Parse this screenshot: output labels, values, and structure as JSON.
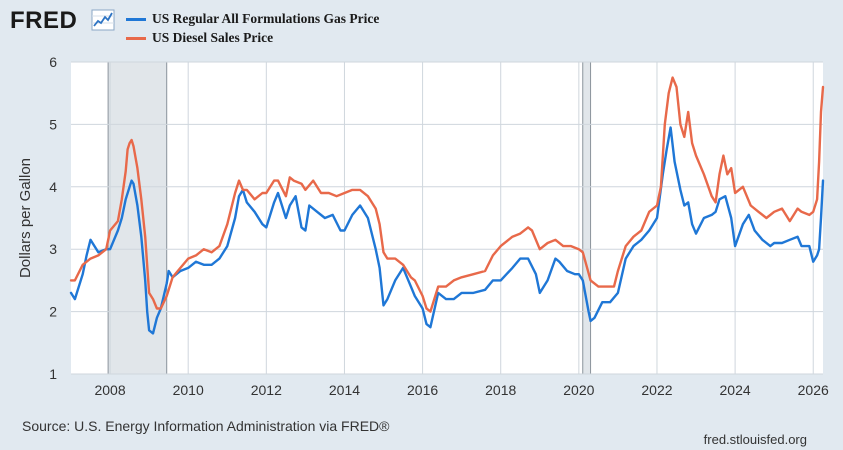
{
  "header": {
    "logo_text": "FRED",
    "logo_icon": "trend-chart-icon"
  },
  "legend": [
    {
      "label": "US Regular All Formulations Gas Price",
      "color": "#1f77d6"
    },
    {
      "label": "US Diesel Sales Price",
      "color": "#e8694a"
    }
  ],
  "footer": {
    "source": "Source: U.S. Energy Information Administration via FRED®",
    "site": "fred.stlouisfed.org"
  },
  "chart_data": {
    "type": "line",
    "title": "",
    "xlabel": "",
    "ylabel": "Dollars per Gallon",
    "xlim": [
      2007.0,
      2026.25
    ],
    "ylim": [
      1,
      6
    ],
    "yticks": [
      1,
      2,
      3,
      4,
      5,
      6
    ],
    "xticks": [
      2008,
      2010,
      2012,
      2014,
      2016,
      2018,
      2020,
      2022,
      2024,
      2026
    ],
    "grid": true,
    "recessions": [
      [
        2007.95,
        2009.45
      ],
      [
        2020.1,
        2020.3
      ]
    ],
    "series": [
      {
        "name": "US Regular All Formulations Gas Price",
        "color": "#1f77d6",
        "x": [
          2007.0,
          2007.1,
          2007.3,
          2007.4,
          2007.5,
          2007.7,
          2007.9,
          2008.0,
          2008.2,
          2008.3,
          2008.4,
          2008.5,
          2008.55,
          2008.6,
          2008.7,
          2008.8,
          2008.9,
          2008.95,
          2009.0,
          2009.1,
          2009.2,
          2009.3,
          2009.45,
          2009.5,
          2009.6,
          2009.8,
          2010.0,
          2010.2,
          2010.4,
          2010.6,
          2010.8,
          2011.0,
          2011.2,
          2011.3,
          2011.4,
          2011.5,
          2011.7,
          2011.9,
          2012.0,
          2012.2,
          2012.3,
          2012.5,
          2012.6,
          2012.75,
          2012.9,
          2013.0,
          2013.1,
          2013.3,
          2013.5,
          2013.7,
          2013.9,
          2014.0,
          2014.2,
          2014.4,
          2014.6,
          2014.8,
          2014.9,
          2015.0,
          2015.1,
          2015.3,
          2015.5,
          2015.7,
          2015.8,
          2016.0,
          2016.1,
          2016.2,
          2016.4,
          2016.6,
          2016.8,
          2017.0,
          2017.3,
          2017.6,
          2017.8,
          2018.0,
          2018.3,
          2018.5,
          2018.7,
          2018.9,
          2019.0,
          2019.2,
          2019.4,
          2019.5,
          2019.7,
          2019.9,
          2020.0,
          2020.1,
          2020.25,
          2020.3,
          2020.4,
          2020.6,
          2020.8,
          2021.0,
          2021.2,
          2021.4,
          2021.6,
          2021.8,
          2022.0,
          2022.15,
          2022.25,
          2022.35,
          2022.45,
          2022.6,
          2022.7,
          2022.8,
          2022.9,
          2023.0,
          2023.2,
          2023.4,
          2023.5,
          2023.6,
          2023.75,
          2023.9,
          2024.0,
          2024.2,
          2024.35,
          2024.5,
          2024.7,
          2024.9,
          2025.0,
          2025.2,
          2025.4,
          2025.6,
          2025.7,
          2025.9,
          2026.0,
          2026.1,
          2026.15,
          2026.2,
          2026.25
        ],
        "values": [
          2.3,
          2.2,
          2.6,
          2.9,
          3.15,
          2.95,
          3.0,
          3.0,
          3.3,
          3.5,
          3.8,
          4.0,
          4.1,
          4.05,
          3.7,
          3.2,
          2.5,
          2.0,
          1.7,
          1.65,
          1.9,
          2.05,
          2.45,
          2.65,
          2.55,
          2.65,
          2.7,
          2.8,
          2.75,
          2.75,
          2.85,
          3.05,
          3.5,
          3.85,
          3.95,
          3.75,
          3.6,
          3.4,
          3.35,
          3.75,
          3.9,
          3.5,
          3.7,
          3.85,
          3.35,
          3.3,
          3.7,
          3.6,
          3.5,
          3.55,
          3.3,
          3.3,
          3.55,
          3.7,
          3.5,
          3.0,
          2.7,
          2.1,
          2.2,
          2.5,
          2.7,
          2.4,
          2.25,
          2.05,
          1.8,
          1.75,
          2.3,
          2.2,
          2.2,
          2.3,
          2.3,
          2.35,
          2.5,
          2.5,
          2.7,
          2.85,
          2.85,
          2.6,
          2.3,
          2.5,
          2.85,
          2.8,
          2.65,
          2.6,
          2.6,
          2.5,
          2.0,
          1.85,
          1.9,
          2.15,
          2.15,
          2.3,
          2.85,
          3.05,
          3.15,
          3.3,
          3.5,
          4.2,
          4.6,
          4.95,
          4.4,
          3.95,
          3.7,
          3.75,
          3.4,
          3.25,
          3.5,
          3.55,
          3.6,
          3.8,
          3.85,
          3.5,
          3.05,
          3.4,
          3.55,
          3.3,
          3.15,
          3.05,
          3.1,
          3.1,
          3.15,
          3.2,
          3.05,
          3.05,
          2.8,
          2.9,
          3.0,
          3.5,
          4.1
        ]
      },
      {
        "name": "US Diesel Sales Price",
        "color": "#e8694a",
        "x": [
          2007.0,
          2007.1,
          2007.3,
          2007.5,
          2007.7,
          2007.9,
          2008.0,
          2008.2,
          2008.3,
          2008.4,
          2008.45,
          2008.5,
          2008.55,
          2008.6,
          2008.7,
          2008.8,
          2008.9,
          2009.0,
          2009.1,
          2009.2,
          2009.3,
          2009.45,
          2009.6,
          2009.8,
          2010.0,
          2010.2,
          2010.4,
          2010.6,
          2010.8,
          2011.0,
          2011.2,
          2011.3,
          2011.4,
          2011.5,
          2011.7,
          2011.9,
          2012.0,
          2012.2,
          2012.3,
          2012.5,
          2012.6,
          2012.7,
          2012.9,
          2013.0,
          2013.2,
          2013.4,
          2013.6,
          2013.8,
          2014.0,
          2014.2,
          2014.4,
          2014.6,
          2014.8,
          2014.9,
          2015.0,
          2015.1,
          2015.3,
          2015.5,
          2015.7,
          2015.8,
          2016.0,
          2016.1,
          2016.2,
          2016.4,
          2016.6,
          2016.8,
          2017.0,
          2017.3,
          2017.6,
          2017.8,
          2018.0,
          2018.3,
          2018.5,
          2018.7,
          2018.8,
          2019.0,
          2019.2,
          2019.4,
          2019.6,
          2019.8,
          2020.0,
          2020.1,
          2020.3,
          2020.5,
          2020.7,
          2020.9,
          2021.0,
          2021.2,
          2021.4,
          2021.6,
          2021.8,
          2022.0,
          2022.1,
          2022.2,
          2022.3,
          2022.4,
          2022.5,
          2022.6,
          2022.7,
          2022.8,
          2022.9,
          2023.0,
          2023.2,
          2023.4,
          2023.5,
          2023.6,
          2023.7,
          2023.8,
          2023.9,
          2024.0,
          2024.2,
          2024.4,
          2024.6,
          2024.8,
          2025.0,
          2025.2,
          2025.4,
          2025.6,
          2025.7,
          2025.9,
          2026.0,
          2026.1,
          2026.15,
          2026.2,
          2026.25
        ],
        "values": [
          2.5,
          2.5,
          2.75,
          2.85,
          2.9,
          3.0,
          3.3,
          3.45,
          3.8,
          4.25,
          4.6,
          4.7,
          4.75,
          4.65,
          4.3,
          3.8,
          3.2,
          2.3,
          2.2,
          2.05,
          2.05,
          2.25,
          2.55,
          2.7,
          2.85,
          2.9,
          3.0,
          2.95,
          3.05,
          3.4,
          3.9,
          4.1,
          3.95,
          3.95,
          3.8,
          3.9,
          3.9,
          4.1,
          4.1,
          3.85,
          4.15,
          4.1,
          4.05,
          3.95,
          4.1,
          3.9,
          3.9,
          3.85,
          3.9,
          3.95,
          3.95,
          3.85,
          3.65,
          3.4,
          2.95,
          2.85,
          2.85,
          2.75,
          2.55,
          2.5,
          2.25,
          2.05,
          2.0,
          2.4,
          2.4,
          2.5,
          2.55,
          2.6,
          2.65,
          2.9,
          3.05,
          3.2,
          3.25,
          3.35,
          3.3,
          3.0,
          3.1,
          3.15,
          3.05,
          3.05,
          3.0,
          2.95,
          2.5,
          2.4,
          2.4,
          2.4,
          2.65,
          3.05,
          3.2,
          3.3,
          3.6,
          3.7,
          4.0,
          5.0,
          5.5,
          5.75,
          5.6,
          5.0,
          4.8,
          5.2,
          4.7,
          4.5,
          4.2,
          3.85,
          3.75,
          4.2,
          4.5,
          4.2,
          4.3,
          3.9,
          4.0,
          3.7,
          3.6,
          3.5,
          3.6,
          3.65,
          3.45,
          3.65,
          3.6,
          3.55,
          3.6,
          3.8,
          4.4,
          5.2,
          5.6
        ]
      }
    ]
  }
}
